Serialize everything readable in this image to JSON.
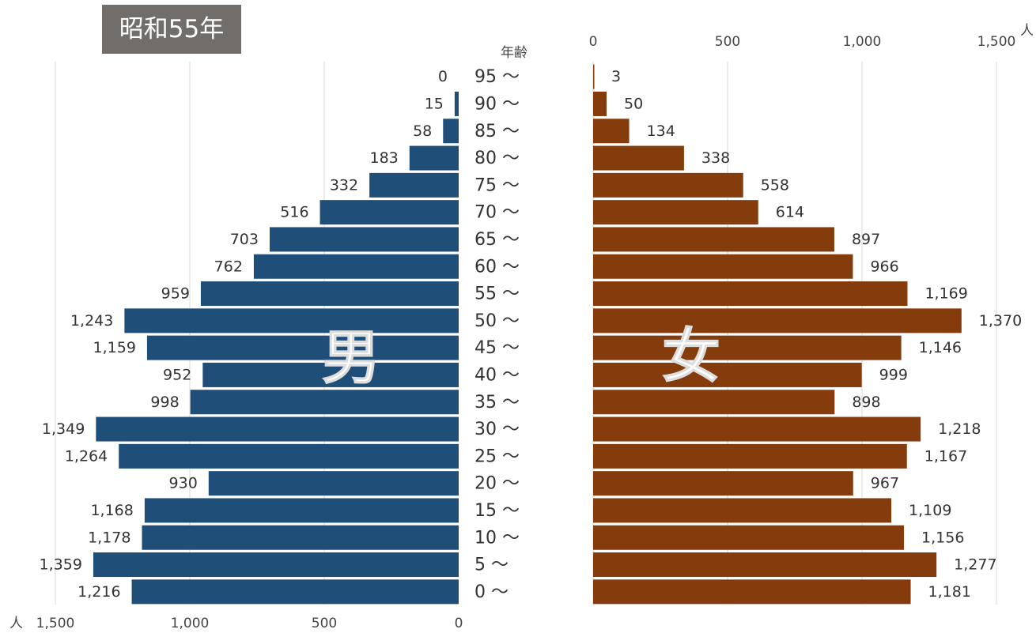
{
  "title": "昭和55年",
  "age_axis_label": "年齢",
  "unit": "人",
  "male_label": "男",
  "female_label": "女",
  "colors": {
    "male": "#1f4e79",
    "female": "#843c0c"
  },
  "chart_data": {
    "type": "bar",
    "orientation": "horizontal-population-pyramid",
    "categories": [
      "95 ～",
      "90 ～",
      "85 ～",
      "80 ～",
      "75 ～",
      "70 ～",
      "65 ～",
      "60 ～",
      "55 ～",
      "50 ～",
      "45 ～",
      "40 ～",
      "35 ～",
      "30 ～",
      "25 ～",
      "20 ～",
      "15 ～",
      "10 ～",
      "5 ～",
      "0 ～"
    ],
    "series": [
      {
        "name": "男",
        "values": [
          0,
          15,
          58,
          183,
          332,
          516,
          703,
          762,
          959,
          1243,
          1159,
          952,
          998,
          1349,
          1264,
          930,
          1168,
          1178,
          1359,
          1216
        ],
        "labels": [
          "0",
          "15",
          "58",
          "183",
          "332",
          "516",
          "703",
          "762",
          "959",
          "1,243",
          "1,159",
          "952",
          "998",
          "1,349",
          "1,264",
          "930",
          "1,168",
          "1,178",
          "1,359",
          "1,216"
        ]
      },
      {
        "name": "女",
        "values": [
          3,
          50,
          134,
          338,
          558,
          614,
          897,
          966,
          1169,
          1370,
          1146,
          999,
          898,
          1218,
          1167,
          967,
          1109,
          1156,
          1277,
          1181
        ],
        "labels": [
          "3",
          "50",
          "134",
          "338",
          "558",
          "614",
          "897",
          "966",
          "1,169",
          "1,370",
          "1,146",
          "999",
          "898",
          "1,218",
          "1,167",
          "967",
          "1,109",
          "1,156",
          "1,277",
          "1,181"
        ]
      }
    ],
    "xlim": [
      0,
      1500
    ],
    "ticks": [
      0,
      500,
      1000,
      1500
    ],
    "tick_labels": [
      "0",
      "500",
      "1,000",
      "1,500"
    ],
    "grid": true,
    "legend": "none"
  }
}
